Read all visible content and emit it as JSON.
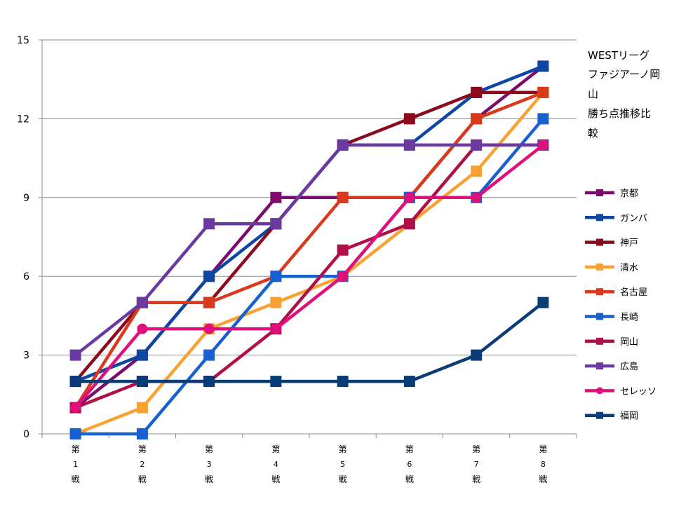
{
  "chart_data": {
    "type": "line",
    "title_lines": [
      "WESTリーグ",
      "ファジアーノ岡",
      "山",
      "勝ち点推移比",
      "較"
    ],
    "x_labels": [
      [
        "第",
        "1",
        "戦"
      ],
      [
        "第",
        "2",
        "戦"
      ],
      [
        "第",
        "3",
        "戦"
      ],
      [
        "第",
        "4",
        "戦"
      ],
      [
        "第",
        "5",
        "戦"
      ],
      [
        "第",
        "6",
        "戦"
      ],
      [
        "第",
        "7",
        "戦"
      ],
      [
        "第",
        "8",
        "戦"
      ]
    ],
    "y_ticks": [
      "0",
      "3",
      "6",
      "9",
      "12",
      "15"
    ],
    "ylim": [
      0,
      15
    ],
    "series": [
      {
        "name": "京都",
        "color": "#7B0C6E",
        "marker": "square",
        "values": [
          1,
          3,
          6,
          9,
          9,
          9,
          12,
          14
        ]
      },
      {
        "name": "ガンバ",
        "color": "#0D47A1",
        "marker": "square",
        "values": [
          2,
          3,
          6,
          8,
          11,
          11,
          13,
          14
        ]
      },
      {
        "name": "神戸",
        "color": "#8B0A1E",
        "marker": "square",
        "values": [
          2,
          5,
          5,
          8,
          11,
          12,
          13,
          13
        ]
      },
      {
        "name": "清水",
        "color": "#F9A232",
        "marker": "square",
        "values": [
          0,
          1,
          4,
          5,
          6,
          8,
          10,
          13
        ]
      },
      {
        "name": "名古屋",
        "color": "#D93A1C",
        "marker": "square",
        "values": [
          1,
          5,
          5,
          6,
          9,
          9,
          12,
          13
        ]
      },
      {
        "name": "長崎",
        "color": "#1660D0",
        "marker": "square",
        "values": [
          0,
          0,
          3,
          6,
          6,
          9,
          9,
          12
        ]
      },
      {
        "name": "岡山",
        "color": "#B0104A",
        "marker": "square",
        "values": [
          1,
          2,
          2,
          4,
          7,
          8,
          11,
          11
        ]
      },
      {
        "name": "広島",
        "color": "#6A3AA0",
        "marker": "square",
        "values": [
          3,
          5,
          8,
          8,
          11,
          11,
          11,
          11
        ]
      },
      {
        "name": "セレッソ",
        "color": "#E0107A",
        "marker": "circle",
        "values": [
          1,
          4,
          4,
          4,
          6,
          9,
          9,
          11
        ]
      },
      {
        "name": "福岡",
        "color": "#0A3D78",
        "marker": "square",
        "values": [
          2,
          2,
          2,
          2,
          2,
          2,
          3,
          5
        ]
      }
    ]
  }
}
